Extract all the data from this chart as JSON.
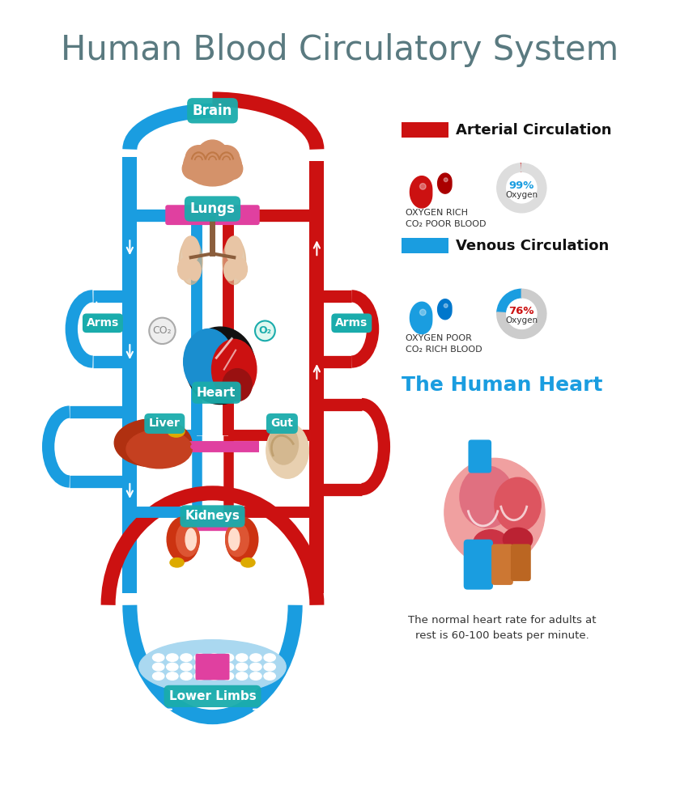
{
  "title": "Human Blood Circulatory System",
  "title_color": "#5a7a80",
  "title_fontsize": 30,
  "bg_color": "#ffffff",
  "arterial_color": "#cc1111",
  "venous_color": "#1a9de0",
  "label_bg_color": "#1aacac",
  "pink_color": "#e040a0",
  "legend_arterial_label": "Arterial Circulation",
  "legend_venous_label": "Venous Circulation",
  "o2_label": "O₂",
  "co2_label": "CO₂",
  "oxygen_rich_label": "OXYGEN RICH\nCO₂ POOR BLOOD",
  "oxygen_poor_label": "OXYGEN POOR\nCO₂ RICH BLOOD",
  "pct_arterial": 99,
  "pct_venous": 76,
  "heart_title": "The Human Heart",
  "heart_note": "The normal heart rate for adults at\nrest is 60-100 beats per minute."
}
